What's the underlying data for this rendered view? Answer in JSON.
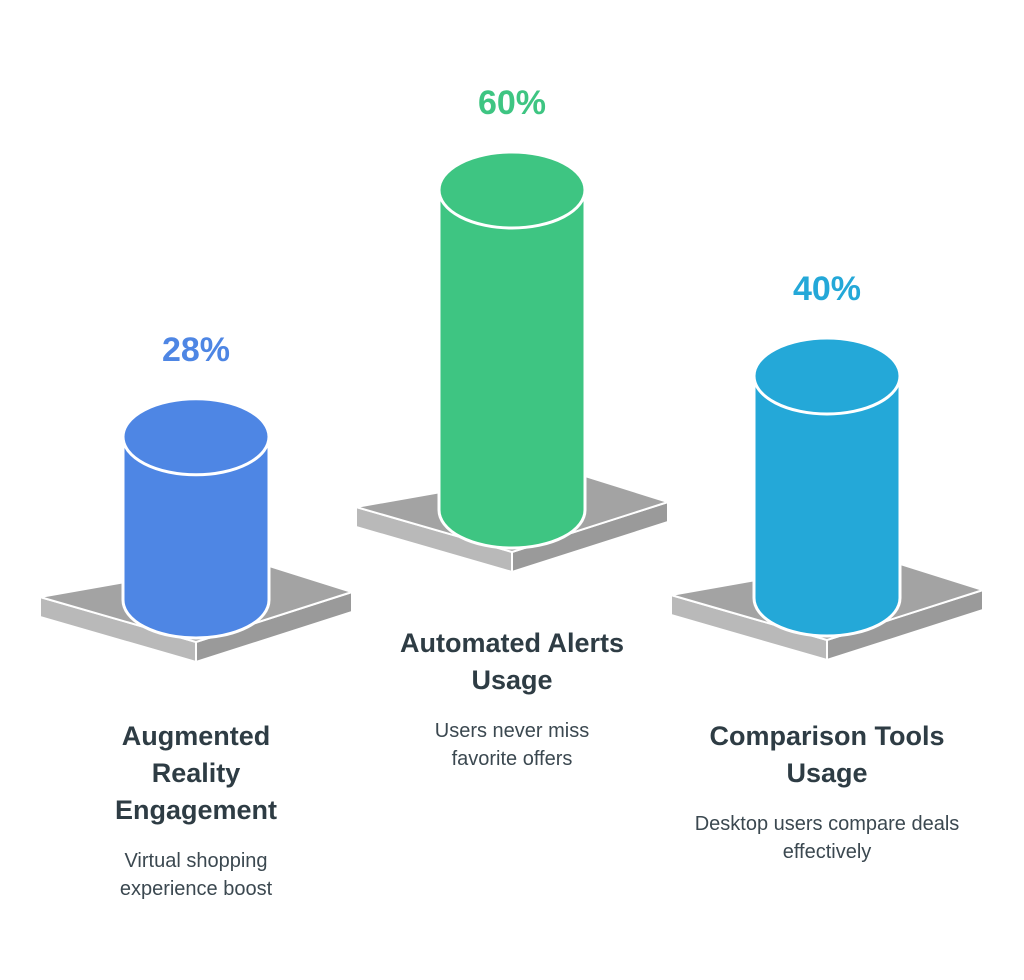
{
  "chart_data": {
    "type": "cylinder",
    "categories": [
      "Augmented Reality Engagement",
      "Automated Alerts Usage",
      "Comparison Tools Usage"
    ],
    "descriptions": [
      "Virtual shopping experience boost",
      "Users never miss favorite offers",
      "Desktop users compare deals effectively"
    ],
    "values": [
      28,
      60,
      40
    ],
    "value_labels": [
      "28%",
      "60%",
      "40%"
    ],
    "colors": [
      "#4e86e4",
      "#3ec582",
      "#24a8d8"
    ]
  }
}
